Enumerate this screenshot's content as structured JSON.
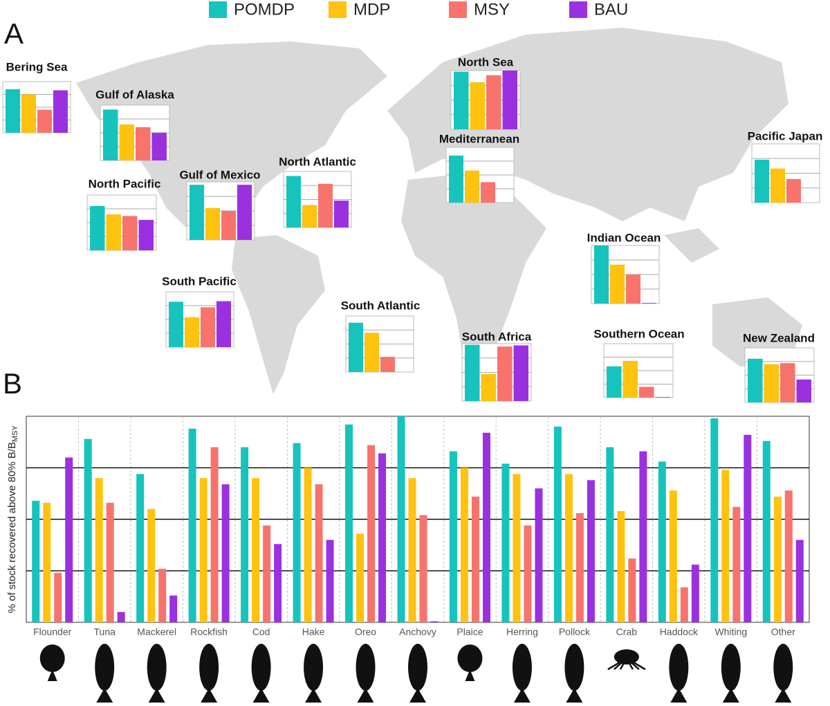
{
  "panel_labels": [
    "A",
    "B"
  ],
  "chart_data": [
    {
      "type": "bar",
      "y_label": "% of stock recovered above 80% B/B",
      "y_label_subscript": "MSY",
      "categories": [
        "Flounder",
        "Tuna",
        "Mackerel",
        "Rockfish",
        "Cod",
        "Hake",
        "Oreo",
        "Anchovy",
        "Plaice",
        "Herring",
        "Pollock",
        "Crab",
        "Haddock",
        "Whiting",
        "Other"
      ],
      "series": [
        {
          "name": "POMDP",
          "color": "#17c3bd",
          "values": [
            59,
            89,
            72,
            94,
            85,
            87,
            96,
            100,
            83,
            77,
            95,
            85,
            78,
            99,
            88
          ]
        },
        {
          "name": "MDP",
          "color": "#ffc20e",
          "values": [
            58,
            70,
            55,
            70,
            70,
            75,
            43,
            70,
            75,
            72,
            72,
            54,
            64,
            74,
            61
          ]
        },
        {
          "name": "MSY",
          "color": "#f8736c",
          "values": [
            24,
            58,
            26,
            85,
            47,
            67,
            86,
            52,
            61,
            47,
            53,
            31,
            17,
            56,
            64
          ]
        },
        {
          "name": "BAU",
          "color": "#9b30e0",
          "values": [
            80,
            5,
            13,
            67,
            38,
            40,
            82,
            0.5,
            92,
            65,
            69,
            83,
            28,
            91,
            40
          ]
        }
      ],
      "ylim": [
        0,
        100
      ],
      "yticks": [
        25,
        50,
        75
      ],
      "grid": true
    },
    {
      "type": "bar",
      "title": "Bering Sea",
      "values": [
        85,
        75,
        45,
        83
      ],
      "ylim": [
        0,
        100
      ],
      "yticks": [
        25,
        50,
        75
      ]
    },
    {
      "type": "bar",
      "title": "Gulf of Alaska",
      "values": [
        92,
        65,
        60,
        50
      ],
      "ylim": [
        0,
        100
      ],
      "yticks": [
        25,
        50,
        75
      ]
    },
    {
      "type": "bar",
      "title": "North Pacific",
      "values": [
        80,
        65,
        62,
        55
      ],
      "ylim": [
        0,
        100
      ],
      "yticks": [
        25,
        50,
        75
      ]
    },
    {
      "type": "bar",
      "title": "Gulf of Mexico",
      "values": [
        95,
        55,
        50,
        95
      ],
      "ylim": [
        0,
        100
      ],
      "yticks": [
        25,
        50,
        75
      ]
    },
    {
      "type": "bar",
      "title": "North Atlantic",
      "values": [
        92,
        40,
        78,
        48
      ],
      "ylim": [
        0,
        100
      ],
      "yticks": [
        25,
        50,
        75
      ]
    },
    {
      "type": "bar",
      "title": "South Pacific",
      "values": [
        82,
        54,
        72,
        83
      ],
      "ylim": [
        0,
        100
      ],
      "yticks": [
        25,
        50,
        75
      ]
    },
    {
      "type": "bar",
      "title": "South Atlantic",
      "values": [
        88,
        70,
        27,
        null
      ],
      "ylim": [
        0,
        100
      ],
      "yticks": [
        25,
        50,
        75
      ]
    },
    {
      "type": "bar",
      "title": "North Sea",
      "values": [
        98,
        80,
        92,
        100
      ],
      "ylim": [
        0,
        100
      ],
      "yticks": [
        25,
        50,
        75
      ]
    },
    {
      "type": "bar",
      "title": "Mediterranean",
      "values": [
        85,
        58,
        37,
        null
      ],
      "ylim": [
        0,
        100
      ],
      "yticks": [
        25,
        50,
        75
      ]
    },
    {
      "type": "bar",
      "title": "Pacific Japan",
      "values": [
        73,
        58,
        40,
        null
      ],
      "ylim": [
        0,
        100
      ],
      "yticks": [
        25,
        50,
        75
      ]
    },
    {
      "type": "bar",
      "title": "Indian Ocean",
      "values": [
        100,
        67,
        50,
        1
      ],
      "ylim": [
        0,
        100
      ],
      "yticks": [
        25,
        50,
        75
      ]
    },
    {
      "type": "bar",
      "title": "South Africa",
      "values": [
        98,
        47,
        95,
        97
      ],
      "ylim": [
        0,
        100
      ],
      "yticks": [
        25,
        50,
        75
      ]
    },
    {
      "type": "bar",
      "title": "Southern Ocean",
      "values": [
        58,
        68,
        20,
        1
      ],
      "ylim": [
        0,
        100
      ],
      "yticks": [
        25,
        50,
        75
      ]
    },
    {
      "type": "bar",
      "title": "New Zealand",
      "values": [
        80,
        70,
        72,
        42
      ],
      "ylim": [
        0,
        100
      ],
      "yticks": [
        25,
        50,
        75
      ]
    }
  ]
}
